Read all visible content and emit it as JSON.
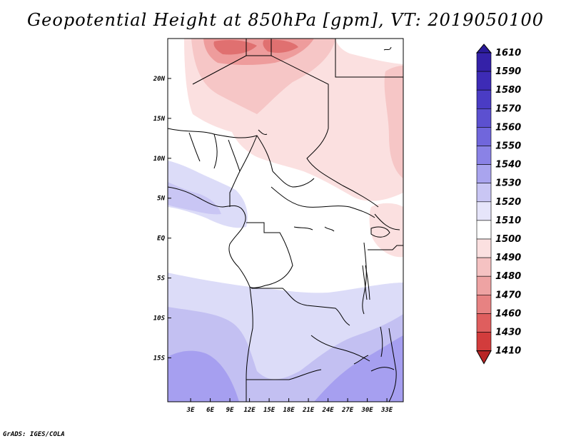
{
  "title": "Geopotential Height at 850hPa [gpm], VT: 2019050100",
  "credit": "GrADS: IGES/COLA",
  "map": {
    "variable": "Geopotential Height",
    "level": "850hPa",
    "units": "gpm",
    "valid_time": "2019050100",
    "lon_range": [
      -0.5,
      35.5
    ],
    "lat_range": [
      -20.5,
      25
    ],
    "x_ticks": [
      {
        "lon": 3,
        "label": "3E"
      },
      {
        "lon": 6,
        "label": "6E"
      },
      {
        "lon": 9,
        "label": "9E"
      },
      {
        "lon": 12,
        "label": "12E"
      },
      {
        "lon": 15,
        "label": "15E"
      },
      {
        "lon": 18,
        "label": "18E"
      },
      {
        "lon": 21,
        "label": "21E"
      },
      {
        "lon": 24,
        "label": "24E"
      },
      {
        "lon": 27,
        "label": "27E"
      },
      {
        "lon": 30,
        "label": "30E"
      },
      {
        "lon": 33,
        "label": "33E"
      }
    ],
    "y_ticks": [
      {
        "lat": 20,
        "label": "20N"
      },
      {
        "lat": 15,
        "label": "15N"
      },
      {
        "lat": 10,
        "label": "10N"
      },
      {
        "lat": 5,
        "label": "5N"
      },
      {
        "lat": 0,
        "label": "EQ"
      },
      {
        "lat": -5,
        "label": "5S"
      },
      {
        "lat": -10,
        "label": "10S"
      },
      {
        "lat": -15,
        "label": "15S"
      }
    ]
  },
  "colorbar": {
    "levels": [
      {
        "label": "1610",
        "color": "#2a1a9a"
      },
      {
        "label": "1590",
        "color": "#3421a8"
      },
      {
        "label": "1580",
        "color": "#3d2bb6"
      },
      {
        "label": "1570",
        "color": "#4a3cc4"
      },
      {
        "label": "1560",
        "color": "#5c50d0"
      },
      {
        "label": "1550",
        "color": "#7066dc"
      },
      {
        "label": "1540",
        "color": "#8a82e6"
      },
      {
        "label": "1530",
        "color": "#a9a4ee"
      },
      {
        "label": "1520",
        "color": "#c9c6f4"
      },
      {
        "label": "1510",
        "color": "#e6e5fa"
      },
      {
        "label": "1500",
        "color": "#ffffff"
      },
      {
        "label": "1490",
        "color": "#fbe0e0"
      },
      {
        "label": "1480",
        "color": "#f5c2c2"
      },
      {
        "label": "1470",
        "color": "#eea3a3"
      },
      {
        "label": "1460",
        "color": "#e78282"
      },
      {
        "label": "1430",
        "color": "#df5e5e"
      },
      {
        "label": "1410",
        "color": "#d23c3c"
      }
    ],
    "lowest_color": "#b82424"
  },
  "colors": {
    "frame": "#000000",
    "land_blue_light": "#dcdcf8",
    "land_blue_mid": "#c3c0f2",
    "land_blue_deep": "#a69ff0",
    "pink_light": "#fbe0e0",
    "pink_mid": "#f6c6c6",
    "pink_deep": "#ee9c9c",
    "red_core": "#e07070"
  }
}
